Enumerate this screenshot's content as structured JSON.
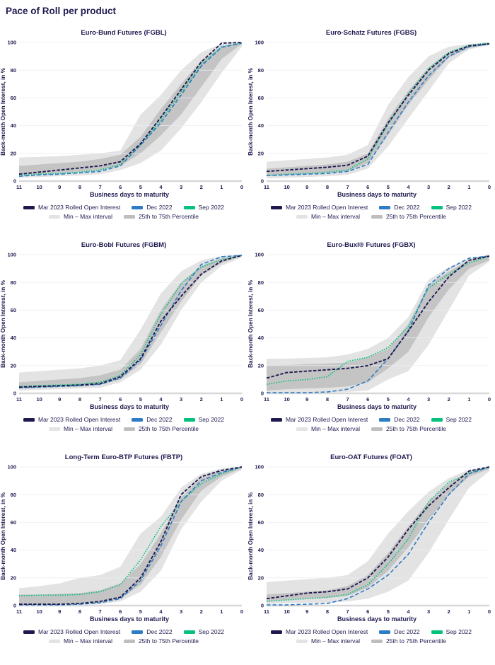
{
  "page": {
    "title": "Pace of Roll per product"
  },
  "axes": {
    "ylabel": "Back-month Open Interest, in %",
    "xlabel": "Business days to maturity",
    "y_ticks": [
      0,
      20,
      40,
      60,
      80,
      100
    ],
    "x_ticks": [
      11,
      10,
      9,
      8,
      7,
      6,
      5,
      4,
      3,
      2,
      1,
      0
    ],
    "ylim": [
      0,
      100
    ],
    "grid": "horizontal"
  },
  "legend": {
    "mar": "Mar 2023 Rolled Open Interest",
    "dec": "Dec 2022",
    "sep": "Sep 2022",
    "minmax": "Min – Max interval",
    "pct": "25th to 75th Percentile",
    "position": "bottom"
  },
  "colors": {
    "mar": "#1E1A4F",
    "dec": "#2E7CC3",
    "sep": "#06C17D",
    "band_light": "#E3E3E4",
    "band_dark": "#BEBEBF",
    "grid": "#E9EDF2",
    "axis_baseline": "#D8D8D8",
    "text": "#1E1A4F"
  },
  "chart_data": [
    {
      "type": "line",
      "title": "Euro-Bund Futures (FGBL)",
      "x": [
        11,
        10,
        9,
        8,
        7,
        6,
        5,
        4,
        3,
        2,
        1,
        0
      ],
      "series": [
        {
          "key": "mar",
          "name": "Mar 2023 Rolled Open Interest",
          "values": [
            5,
            6.5,
            8,
            9.5,
            11,
            14,
            27,
            46,
            66,
            86,
            99.5,
            100
          ]
        },
        {
          "key": "dec",
          "name": "Dec 2022",
          "values": [
            3.5,
            4.5,
            5,
            6,
            7,
            11,
            26,
            42,
            62,
            83,
            96.5,
            99.5
          ]
        },
        {
          "key": "sep",
          "name": "Sep 2022",
          "values": [
            4,
            5,
            5.5,
            6.5,
            8,
            12,
            26,
            44,
            64,
            84,
            97,
            99.5
          ]
        }
      ],
      "bands": {
        "min": [
          2.5,
          3,
          3.5,
          4,
          5,
          8,
          13,
          22,
          38,
          57,
          78,
          97
        ],
        "max": [
          17,
          17.5,
          18,
          19,
          20,
          22,
          48,
          62,
          80,
          93,
          99,
          100
        ],
        "p25": [
          4.5,
          5,
          6,
          7,
          8,
          11,
          20,
          33,
          48,
          68,
          88,
          99
        ],
        "p75": [
          11,
          12,
          13,
          14,
          16,
          19,
          32,
          52,
          70,
          87,
          97,
          100
        ]
      }
    },
    {
      "type": "line",
      "title": "Euro-Schatz Futures (FGBS)",
      "x": [
        11,
        10,
        9,
        8,
        7,
        6,
        5,
        4,
        3,
        2,
        1,
        0
      ],
      "series": [
        {
          "key": "mar",
          "name": "Mar 2023 Rolled Open Interest",
          "values": [
            7,
            8,
            9,
            10,
            11.5,
            18,
            42,
            62,
            80,
            92,
            97.5,
            99
          ]
        },
        {
          "key": "dec",
          "name": "Dec 2022",
          "values": [
            4,
            4.5,
            5,
            5.5,
            7,
            12,
            35,
            57,
            76,
            90,
            97,
            99
          ]
        },
        {
          "key": "sep",
          "name": "Sep 2022",
          "values": [
            4,
            5,
            5.5,
            6.5,
            8,
            16,
            41,
            63,
            81,
            93,
            98,
            99.5
          ]
        }
      ],
      "bands": {
        "min": [
          2,
          2.5,
          3,
          3.5,
          4.5,
          9,
          25,
          45,
          65,
          85,
          95,
          98
        ],
        "max": [
          14,
          15,
          16,
          17,
          19,
          26,
          55,
          75,
          90,
          97,
          99,
          100
        ],
        "p25": [
          4,
          4.5,
          5,
          6,
          7,
          13,
          33,
          55,
          73,
          89,
          96,
          98.5
        ],
        "p75": [
          9,
          10,
          11,
          12,
          14,
          20,
          45,
          65,
          82,
          93,
          98,
          99.5
        ]
      }
    },
    {
      "type": "line",
      "title": "Euro-Bobl Futures (FGBM)",
      "x": [
        11,
        10,
        9,
        8,
        7,
        6,
        5,
        4,
        3,
        2,
        1,
        0
      ],
      "series": [
        {
          "key": "mar",
          "name": "Mar 2023 Rolled Open Interest",
          "values": [
            4.5,
            5,
            5.5,
            6,
            7,
            12,
            25,
            52,
            70,
            86,
            95.5,
            99.5
          ]
        },
        {
          "key": "dec",
          "name": "Dec 2022",
          "values": [
            4,
            4.5,
            5,
            5.5,
            6.5,
            11,
            24,
            49,
            74,
            93,
            98.5,
            99.5
          ]
        },
        {
          "key": "sep",
          "name": "Sep 2022",
          "values": [
            5,
            5.5,
            6,
            6.5,
            8,
            13,
            28,
            57,
            79,
            91,
            96.5,
            99.5
          ]
        }
      ],
      "bands": {
        "min": [
          2,
          2.5,
          3,
          3.5,
          4,
          8,
          17,
          35,
          60,
          80,
          92,
          98
        ],
        "max": [
          15,
          16,
          17,
          18,
          20,
          24,
          46,
          72,
          88,
          96,
          99,
          100
        ],
        "p25": [
          3.5,
          4,
          4.5,
          5,
          6,
          10,
          21,
          44,
          66,
          85,
          94,
          99
        ],
        "p75": [
          8,
          9,
          10,
          11,
          13,
          17,
          32,
          60,
          80,
          92,
          97.5,
          100
        ]
      }
    },
    {
      "type": "line",
      "title": "Euro-Buxl® Futures (FGBX)",
      "x": [
        11,
        10,
        9,
        8,
        7,
        6,
        5,
        4,
        3,
        2,
        1,
        0
      ],
      "series": [
        {
          "key": "mar",
          "name": "Mar 2023 Rolled Open Interest",
          "values": [
            11,
            15,
            16,
            17,
            18,
            20,
            25,
            45,
            66,
            84,
            96,
            99
          ]
        },
        {
          "key": "dec",
          "name": "Dec 2022",
          "values": [
            0.5,
            0.5,
            0.5,
            1,
            3,
            9,
            25,
            45,
            78,
            90,
            97.5,
            99
          ]
        },
        {
          "key": "sep",
          "name": "Sep 2022",
          "values": [
            6.5,
            9,
            10,
            12,
            23,
            26,
            33,
            48,
            76,
            86,
            94,
            99
          ]
        }
      ],
      "bands": {
        "min": [
          0,
          0,
          0,
          0.5,
          1,
          2,
          10,
          16,
          35,
          60,
          85,
          95
        ],
        "max": [
          25,
          25,
          25.5,
          26,
          28,
          32,
          40,
          55,
          82,
          91,
          97,
          100
        ],
        "p25": [
          2,
          3,
          3.5,
          4,
          5,
          8,
          18,
          30,
          55,
          75,
          90,
          96
        ],
        "p75": [
          20,
          20.5,
          21,
          21.5,
          22,
          26,
          32,
          50,
          78,
          88,
          96,
          99.5
        ]
      }
    },
    {
      "type": "line",
      "title": "Long-Term Euro-BTP Futures (FBTP)",
      "x": [
        11,
        10,
        9,
        8,
        7,
        6,
        5,
        4,
        3,
        2,
        1,
        0
      ],
      "series": [
        {
          "key": "mar",
          "name": "Mar 2023 Rolled Open Interest",
          "values": [
            1,
            1,
            1,
            1.5,
            3,
            6,
            20,
            46,
            80,
            93,
            97.5,
            100
          ]
        },
        {
          "key": "dec",
          "name": "Dec 2022",
          "values": [
            0.5,
            0.5,
            0.5,
            1,
            2,
            5,
            18,
            43,
            75,
            90,
            96,
            100
          ]
        },
        {
          "key": "sep",
          "name": "Sep 2022",
          "values": [
            7,
            7.5,
            7.5,
            8,
            10,
            15,
            33,
            57,
            75,
            88,
            95,
            100
          ]
        }
      ],
      "bands": {
        "min": [
          0,
          0,
          0,
          0.5,
          1,
          3,
          10,
          25,
          55,
          75,
          90,
          98
        ],
        "max": [
          12.5,
          14,
          16,
          20,
          22,
          28,
          52,
          64,
          85,
          95,
          99,
          100
        ],
        "p25": [
          0.5,
          1,
          1,
          1.5,
          2,
          5,
          15,
          35,
          62,
          83,
          93,
          99
        ],
        "p75": [
          8,
          8,
          8.5,
          9,
          11,
          16,
          30,
          52,
          78,
          92,
          97.5,
          100
        ]
      }
    },
    {
      "type": "line",
      "title": "Euro-OAT Futures (FOAT)",
      "x": [
        11,
        10,
        9,
        8,
        7,
        6,
        5,
        4,
        3,
        2,
        1,
        0
      ],
      "series": [
        {
          "key": "mar",
          "name": "Mar 2023 Rolled Open Interest",
          "values": [
            5,
            7,
            9,
            10,
            12,
            20,
            35,
            55,
            72,
            85,
            97,
            100
          ]
        },
        {
          "key": "dec",
          "name": "Dec 2022",
          "values": [
            0.5,
            0.5,
            1,
            1.5,
            5,
            12,
            22,
            37,
            60,
            80,
            95,
            100
          ]
        },
        {
          "key": "sep",
          "name": "Sep 2022",
          "values": [
            3,
            4,
            5,
            6,
            8,
            15,
            30,
            48,
            75,
            89,
            95.5,
            100
          ]
        }
      ],
      "bands": {
        "min": [
          1,
          1.5,
          2,
          2,
          3,
          5,
          10,
          18,
          38,
          62,
          85,
          97
        ],
        "max": [
          17,
          18,
          19,
          20,
          22,
          32,
          52,
          68,
          82,
          92,
          98,
          100
        ],
        "p25": [
          3,
          4,
          5,
          5.5,
          7,
          13,
          25,
          42,
          62,
          80,
          93,
          98.5
        ],
        "p75": [
          8,
          9,
          10,
          11,
          14,
          22,
          38,
          57,
          75,
          88,
          97,
          100
        ]
      }
    }
  ]
}
